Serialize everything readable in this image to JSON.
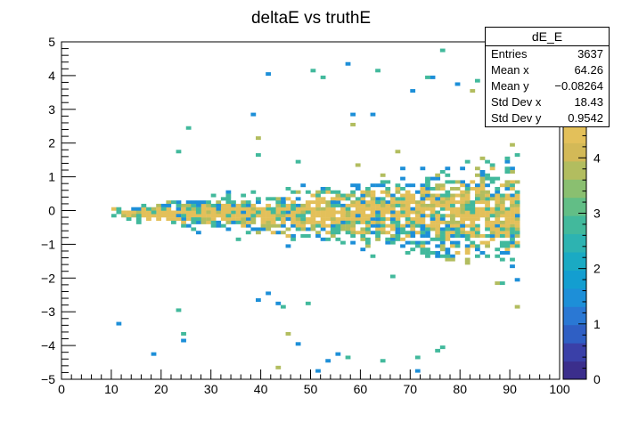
{
  "chart_data": {
    "type": "heatmap",
    "title": "deltaE vs truthE",
    "xlabel": "",
    "ylabel": "",
    "xlim": [
      0,
      100
    ],
    "ylim": [
      -5,
      5
    ],
    "zlim": [
      0,
      4.6
    ],
    "x_ticks": [
      "0",
      "10",
      "20",
      "30",
      "40",
      "50",
      "60",
      "70",
      "80",
      "90",
      "100"
    ],
    "y_ticks": [
      "−5",
      "−4",
      "−3",
      "−2",
      "−1",
      "0",
      "1",
      "2",
      "3",
      "4",
      "5"
    ],
    "z_ticks": [
      "0",
      "1",
      "2",
      "3",
      "4"
    ],
    "palette": [
      "#3b2e8c",
      "#3a40a8",
      "#2f5fc4",
      "#2a78d4",
      "#1d8fd8",
      "#139ed0",
      "#1aaac3",
      "#2db3b1",
      "#42b99c",
      "#62be86",
      "#8abf70",
      "#b2bd5f",
      "#d3b957",
      "#e3c05a"
    ],
    "grid": false,
    "density_model": {
      "x_bins": 100,
      "y_bins": 100,
      "x_range_of_entries": [
        10,
        92
      ],
      "y_core_width_at_x": [
        [
          10,
          0.15
        ],
        [
          30,
          0.5
        ],
        [
          60,
          1.0
        ],
        [
          90,
          1.8
        ]
      ],
      "max_count": 4
    }
  },
  "stats": {
    "name": "dE_E",
    "rows": [
      {
        "label": "Entries",
        "value": "3637"
      },
      {
        "label": "Mean x",
        "value": "64.26"
      },
      {
        "label": "Mean y",
        "value": "−0.08264"
      },
      {
        "label": "Std Dev x",
        "value": "18.43"
      },
      {
        "label": "Std Dev y",
        "value": "0.9542"
      }
    ]
  }
}
